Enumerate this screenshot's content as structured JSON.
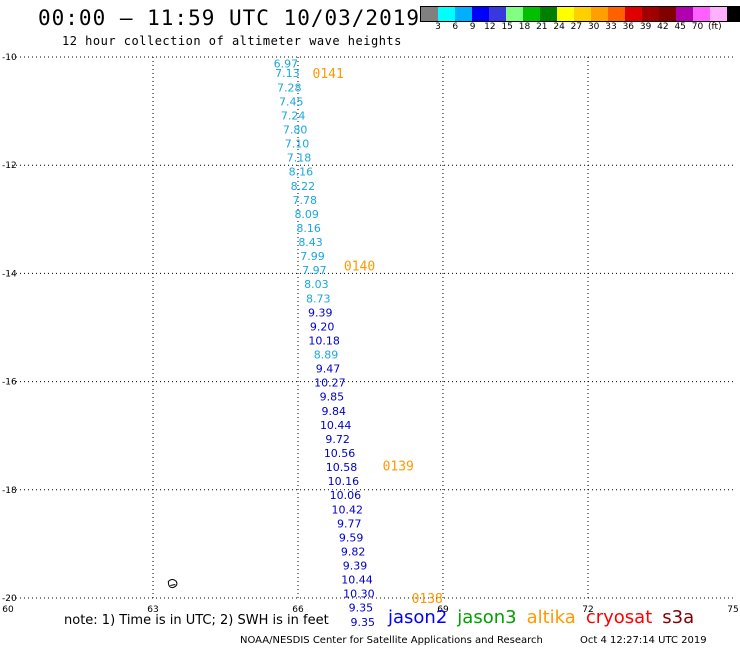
{
  "header": {
    "title": "00:00 – 11:59 UTC 10/03/2019",
    "subtitle": "12 hour collection of altimeter wave heights"
  },
  "colorbar": {
    "colors": [
      "#808080",
      "#00ffff",
      "#00b0ff",
      "#0000ff",
      "#3838e0",
      "#80ff80",
      "#00c000",
      "#008000",
      "#ffff00",
      "#ffd000",
      "#ffa000",
      "#ff6000",
      "#e00000",
      "#a00000",
      "#800000",
      "#b000b0",
      "#ff60ff",
      "#ffb0ff",
      "#000000"
    ],
    "labels": [
      "3",
      "6",
      "9",
      "12",
      "15",
      "18",
      "21",
      "24",
      "27",
      "30",
      "33",
      "36",
      "39",
      "42",
      "45",
      "70",
      "(ft)"
    ]
  },
  "chart_data": {
    "type": "scatter",
    "xlim": [
      60,
      75
    ],
    "ylim": [
      -20,
      -10
    ],
    "x_ticks": [
      "60",
      "63",
      "66",
      "69",
      "72",
      "75"
    ],
    "y_ticks": [
      "-10",
      "-12",
      "-14",
      "-16",
      "-18",
      "-20"
    ],
    "track_colors": {
      "light": "#1aa7e0",
      "dark": "#0000cc",
      "pass": "#ff9900"
    },
    "points": [
      {
        "lon": 65.75,
        "lat": -10.12,
        "label": "6.97",
        "color": "light"
      },
      {
        "lon": 65.78,
        "lat": -10.3,
        "label": "7.13",
        "color": "light"
      },
      {
        "lon": 65.82,
        "lat": -10.56,
        "label": "7.28",
        "color": "light"
      },
      {
        "lon": 65.86,
        "lat": -10.82,
        "label": "7.45",
        "color": "light"
      },
      {
        "lon": 65.9,
        "lat": -11.08,
        "label": "7.24",
        "color": "light"
      },
      {
        "lon": 65.94,
        "lat": -11.34,
        "label": "7.80",
        "color": "light"
      },
      {
        "lon": 65.98,
        "lat": -11.6,
        "label": "7.10",
        "color": "light"
      },
      {
        "lon": 66.02,
        "lat": -11.86,
        "label": "7.18",
        "color": "light"
      },
      {
        "lon": 66.06,
        "lat": -12.12,
        "label": "8.16",
        "color": "light"
      },
      {
        "lon": 66.1,
        "lat": -12.38,
        "label": "8.22",
        "color": "light"
      },
      {
        "lon": 66.14,
        "lat": -12.64,
        "label": "7.78",
        "color": "light"
      },
      {
        "lon": 66.18,
        "lat": -12.9,
        "label": "8.09",
        "color": "light"
      },
      {
        "lon": 66.22,
        "lat": -13.16,
        "label": "8.16",
        "color": "light"
      },
      {
        "lon": 66.26,
        "lat": -13.42,
        "label": "8.43",
        "color": "light"
      },
      {
        "lon": 66.3,
        "lat": -13.68,
        "label": "7.99",
        "color": "light"
      },
      {
        "lon": 66.34,
        "lat": -13.94,
        "label": "7.97",
        "color": "light"
      },
      {
        "lon": 66.38,
        "lat": -14.2,
        "label": "8.03",
        "color": "light"
      },
      {
        "lon": 66.42,
        "lat": -14.46,
        "label": "8.73",
        "color": "light"
      },
      {
        "lon": 66.46,
        "lat": -14.72,
        "label": "9.39",
        "color": "dark"
      },
      {
        "lon": 66.5,
        "lat": -14.98,
        "label": "9.20",
        "color": "dark"
      },
      {
        "lon": 66.54,
        "lat": -15.24,
        "label": "10.18",
        "color": "dark"
      },
      {
        "lon": 66.58,
        "lat": -15.5,
        "label": "8.89",
        "color": "light"
      },
      {
        "lon": 66.62,
        "lat": -15.76,
        "label": "9.47",
        "color": "dark"
      },
      {
        "lon": 66.66,
        "lat": -16.02,
        "label": "10.27",
        "color": "dark"
      },
      {
        "lon": 66.7,
        "lat": -16.28,
        "label": "9.85",
        "color": "dark"
      },
      {
        "lon": 66.74,
        "lat": -16.54,
        "label": "9.84",
        "color": "dark"
      },
      {
        "lon": 66.78,
        "lat": -16.8,
        "label": "10.44",
        "color": "dark"
      },
      {
        "lon": 66.82,
        "lat": -17.06,
        "label": "9.72",
        "color": "dark"
      },
      {
        "lon": 66.86,
        "lat": -17.32,
        "label": "10.56",
        "color": "dark"
      },
      {
        "lon": 66.9,
        "lat": -17.58,
        "label": "10.58",
        "color": "dark"
      },
      {
        "lon": 66.94,
        "lat": -17.84,
        "label": "10.16",
        "color": "dark"
      },
      {
        "lon": 66.98,
        "lat": -18.1,
        "label": "10.06",
        "color": "dark"
      },
      {
        "lon": 67.02,
        "lat": -18.36,
        "label": "10.42",
        "color": "dark"
      },
      {
        "lon": 67.06,
        "lat": -18.62,
        "label": "9.77",
        "color": "dark"
      },
      {
        "lon": 67.1,
        "lat": -18.88,
        "label": "9.59",
        "color": "dark"
      },
      {
        "lon": 67.14,
        "lat": -19.14,
        "label": "9.82",
        "color": "dark"
      },
      {
        "lon": 67.18,
        "lat": -19.4,
        "label": "9.39",
        "color": "dark"
      },
      {
        "lon": 67.22,
        "lat": -19.66,
        "label": "10.44",
        "color": "dark"
      },
      {
        "lon": 67.26,
        "lat": -19.92,
        "label": "10.30",
        "color": "dark"
      },
      {
        "lon": 67.3,
        "lat": -20.18,
        "label": "9.35",
        "color": "dark"
      },
      {
        "lon": 67.34,
        "lat": -20.44,
        "label": "9.35",
        "color": "dark"
      }
    ],
    "pass_labels": [
      {
        "lon": 66.3,
        "lat": -10.3,
        "label": "0141"
      },
      {
        "lon": 66.95,
        "lat": -13.85,
        "label": "0140"
      },
      {
        "lon": 67.75,
        "lat": -17.55,
        "label": "0139"
      },
      {
        "lon": 68.35,
        "lat": -20.0,
        "label": "0138"
      }
    ]
  },
  "footer": {
    "note": "note: 1) Time is in UTC; 2) SWH is in feet",
    "satellites": [
      {
        "name": "jason2",
        "color": "#0000ff"
      },
      {
        "name": "jason3",
        "color": "#00a000"
      },
      {
        "name": "altika",
        "color": "#ff9900"
      },
      {
        "name": "cryosat",
        "color": "#ff0000"
      },
      {
        "name": "s3a",
        "color": "#800000"
      }
    ],
    "credit": "NOAA/NESDIS Center for Satellite Applications and Research",
    "timestamp": "Oct  4 12:27:14 UTC 2019"
  }
}
